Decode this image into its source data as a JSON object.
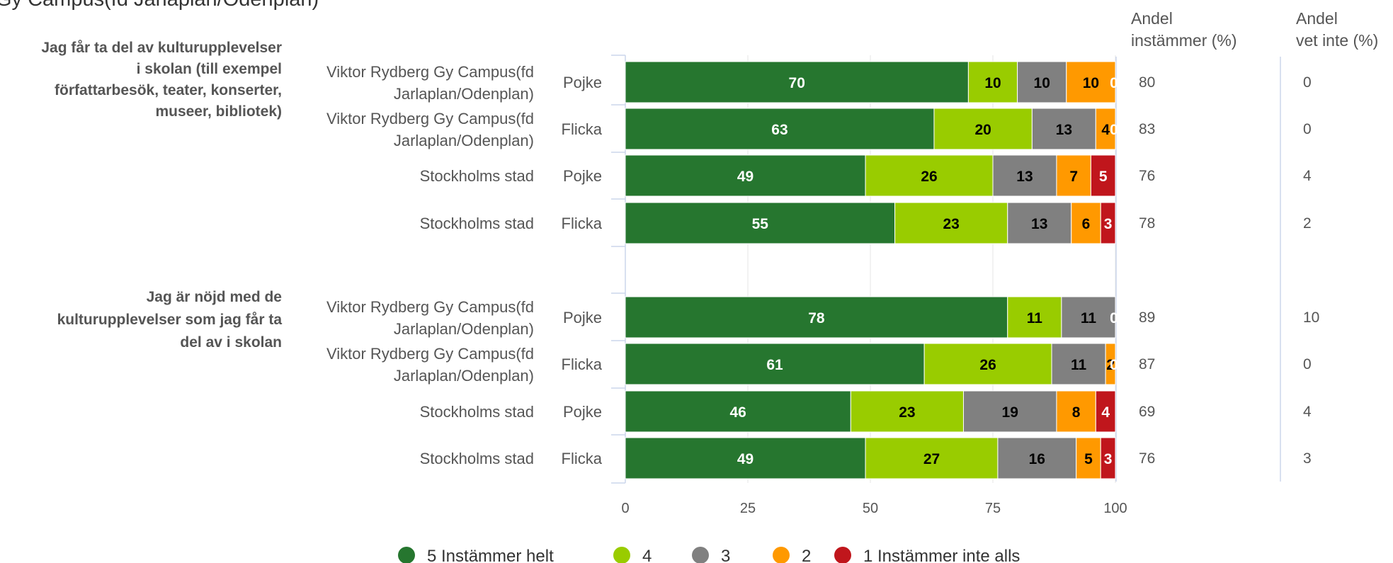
{
  "title_fragment": "Gy Campus(fd Jarlaplan/Odenplan)",
  "column_headers": {
    "instammer": [
      "Andel",
      "instämmer (%)"
    ],
    "vet_inte": [
      "Andel",
      "vet inte (%)"
    ]
  },
  "chart_data": {
    "type": "bar",
    "orientation": "horizontal",
    "stacked": true,
    "xlim": [
      0,
      100
    ],
    "x_ticks": [
      "0",
      "25",
      "50",
      "75",
      "100"
    ],
    "grid": true,
    "legend_position": "bottom",
    "series": [
      {
        "name": "5 Instämmer helt",
        "color": "#26762f"
      },
      {
        "name": "4",
        "color": "#99cc00"
      },
      {
        "name": "3",
        "color": "#808080"
      },
      {
        "name": "2",
        "color": "#ff9900"
      },
      {
        "name": "1 Instämmer inte alls",
        "color": "#c0161c"
      }
    ],
    "groups": [
      {
        "question": [
          "Jag får ta del av kulturupplevelser",
          "i skolan (till exempel",
          "författarbesök, teater, konserter,",
          "museer, bibliotek)"
        ],
        "rows": [
          {
            "school": [
              "Viktor Rydberg Gy Campus(fd",
              "Jarlaplan/Odenplan)"
            ],
            "gender": "Pojke",
            "values": [
              70,
              10,
              10,
              10,
              0
            ],
            "instammer": "80",
            "vet_inte": "0"
          },
          {
            "school": [
              "Viktor Rydberg Gy Campus(fd",
              "Jarlaplan/Odenplan)"
            ],
            "gender": "Flicka",
            "values": [
              63,
              20,
              13,
              4,
              0
            ],
            "instammer": "83",
            "vet_inte": "0"
          },
          {
            "school": [
              "Stockholms stad"
            ],
            "gender": "Pojke",
            "values": [
              49,
              26,
              13,
              7,
              5
            ],
            "instammer": "76",
            "vet_inte": "4"
          },
          {
            "school": [
              "Stockholms stad"
            ],
            "gender": "Flicka",
            "values": [
              55,
              23,
              13,
              6,
              3
            ],
            "instammer": "78",
            "vet_inte": "2"
          }
        ]
      },
      {
        "question": [
          "Jag är nöjd med de",
          "kulturupplevelser som jag får ta",
          "del av i skolan"
        ],
        "rows": [
          {
            "school": [
              "Viktor Rydberg Gy Campus(fd",
              "Jarlaplan/Odenplan)"
            ],
            "gender": "Pojke",
            "values": [
              78,
              11,
              11,
              0,
              0
            ],
            "instammer": "89",
            "vet_inte": "10"
          },
          {
            "school": [
              "Viktor Rydberg Gy Campus(fd",
              "Jarlaplan/Odenplan)"
            ],
            "gender": "Flicka",
            "values": [
              61,
              26,
              11,
              2,
              0
            ],
            "instammer": "87",
            "vet_inte": "0"
          },
          {
            "school": [
              "Stockholms stad"
            ],
            "gender": "Pojke",
            "values": [
              46,
              23,
              19,
              8,
              4
            ],
            "instammer": "69",
            "vet_inte": "4"
          },
          {
            "school": [
              "Stockholms stad"
            ],
            "gender": "Flicka",
            "values": [
              49,
              27,
              16,
              5,
              3
            ],
            "instammer": "76",
            "vet_inte": "3"
          }
        ]
      }
    ]
  }
}
